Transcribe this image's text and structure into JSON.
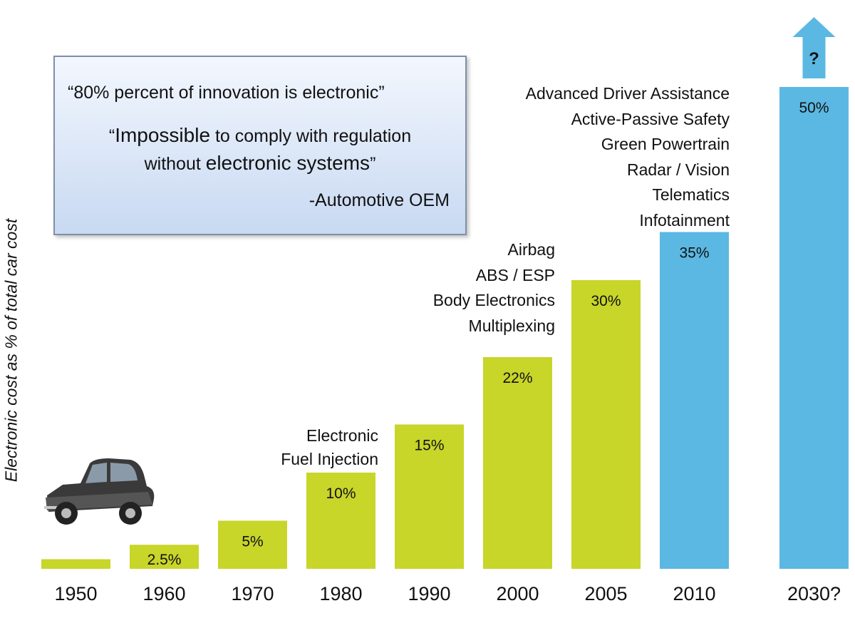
{
  "chart_data": {
    "type": "bar",
    "ylabel": "Electronic cost as % of total car cost",
    "categories": [
      "1950",
      "1960",
      "1970",
      "1980",
      "1990",
      "2000",
      "2005",
      "2010",
      "2030?"
    ],
    "values": [
      1,
      2.5,
      5,
      10,
      15,
      22,
      30,
      35,
      50
    ],
    "data_labels": [
      "",
      "2.5%",
      "5%",
      "10%",
      "15%",
      "22%",
      "30%",
      "35%",
      "50%"
    ],
    "bar_colors": [
      "#c8d529",
      "#c8d529",
      "#c8d529",
      "#c8d529",
      "#c8d529",
      "#c8d529",
      "#c8d529",
      "#5bb8e2",
      "#5bb8e2"
    ],
    "future_arrow_label": "?",
    "feature_annotations": {
      "1980": [
        "Electronic",
        "Fuel Injection"
      ],
      "2000": [
        "Airbag",
        "ABS / ESP",
        "Body Electronics",
        "Multiplexing"
      ],
      "2010": [
        "Advanced Driver Assistance",
        "Active-Passive Safety",
        "Green Powertrain",
        "Radar / Vision",
        "Telematics",
        "Infotainment"
      ]
    }
  },
  "quote": {
    "line1": "“80% percent of innovation is electronic”",
    "line2_quote_open": "“",
    "line2_emph": "Impossible",
    "line2_rest": " to comply with regulation",
    "line3_start": "without ",
    "line3_emph": "electronic systems",
    "line3_end": "”",
    "attribution": "-Automotive OEM"
  }
}
